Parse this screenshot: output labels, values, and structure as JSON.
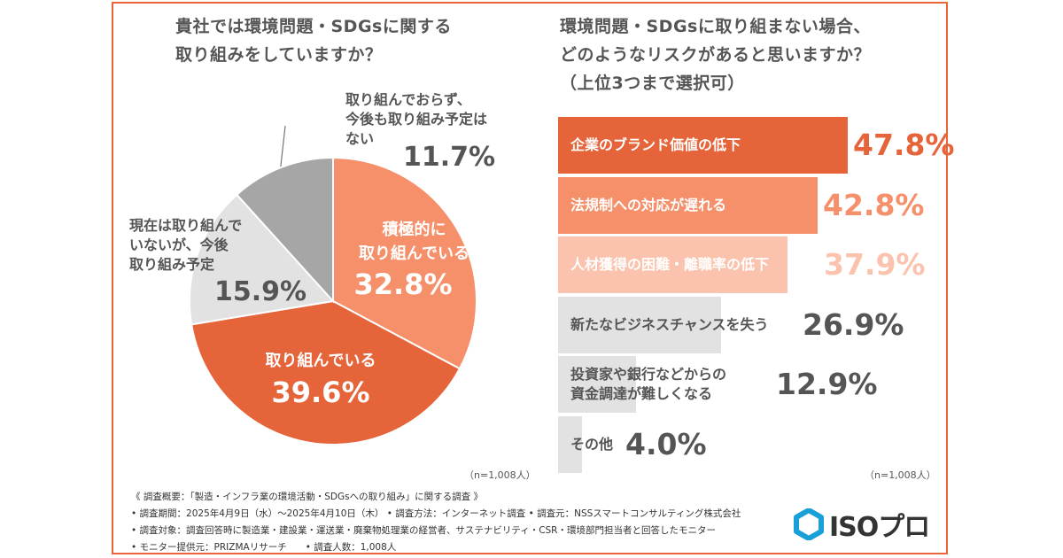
{
  "left_panel": {
    "title_line1": "貴社では環境問題・SDGsに関する",
    "title_line2": "取り組みをしていますか？",
    "n_note": "（n=1,008人）"
  },
  "right_panel": {
    "title_line1": "環境問題・SDGsに取り組まない場合、",
    "title_line2": "どのようなリスクがあると思いますか？",
    "title_line3": "（上位3つまで選択可）",
    "n_note": "（n=1,008人）"
  },
  "footer": {
    "line1": "《 調査概要：「製造・インフラ業の環境活動・SDGsへの取り組み」に関する調査 》",
    "line2": "• 調査期間：2025年4月9日（水）～2025年4月10日（木） • 調査方法：インターネット調査 • 調査元：NSSスマートコンサルティング株式会社",
    "line3": "• 調査対象：調査回答時に製造業・建設業・運送業・廃棄物処理業の経営者、サステナビリティ・CSR・環境部門担当者と回答したモニター",
    "line4": "• モニター提供元：PRIZMAリサーチ　　• 調査人数：1,008人"
  },
  "logo": {
    "text": "ISOプロ",
    "icon": "hexagon-logo-icon",
    "color": "#1aa0d8"
  },
  "chart_data": [
    {
      "type": "pie",
      "slices": [
        {
          "label_lines": [
            "積極的に",
            "取り組んでいる"
          ],
          "value": 32.8,
          "value_label": "32.8%",
          "color": "#f5906a"
        },
        {
          "label_lines": [
            "取り組んでいる"
          ],
          "value": 39.6,
          "value_label": "39.6%",
          "color": "#e5643a"
        },
        {
          "label_lines": [
            "現在は取り組んで",
            "いないが、今後",
            "取り組み予定"
          ],
          "value": 15.9,
          "value_label": "15.9%",
          "color": "#e2e2e2"
        },
        {
          "label_lines": [
            "取り組んでおらず、",
            "今後も取り組み予定は",
            "ない"
          ],
          "value": 11.7,
          "value_label": "11.7%",
          "color": "#a6a6a6"
        }
      ]
    },
    {
      "type": "bar",
      "orientation": "horizontal",
      "categories": [
        [
          "企業のブランド価値の低下"
        ],
        [
          "法規制への対応が遅れる"
        ],
        [
          "人材獲得の困難・離職率の低下"
        ],
        [
          "新たなビジネスチャンスを失う"
        ],
        [
          "投資家や銀行などからの",
          "資金調達が難しくなる"
        ],
        [
          "その他"
        ]
      ],
      "values": [
        47.8,
        42.8,
        37.9,
        26.9,
        12.9,
        4.0
      ],
      "value_labels": [
        "47.8%",
        "42.8%",
        "37.9%",
        "26.9%",
        "12.9%",
        "4.0%"
      ],
      "colors": [
        "#e5643a",
        "#f5906a",
        "#fbc3ad",
        "#e2e2e2",
        "#e2e2e2",
        "#e2e2e2"
      ],
      "label_colors": [
        "#ffffff",
        "#ffffff",
        "#ffffff",
        "#555555",
        "#555555",
        "#555555"
      ],
      "value_colors": [
        "#e5643a",
        "#f5906a",
        "#fbc3ad",
        "#555555",
        "#555555",
        "#555555"
      ],
      "xlim": [
        0,
        50
      ]
    }
  ]
}
